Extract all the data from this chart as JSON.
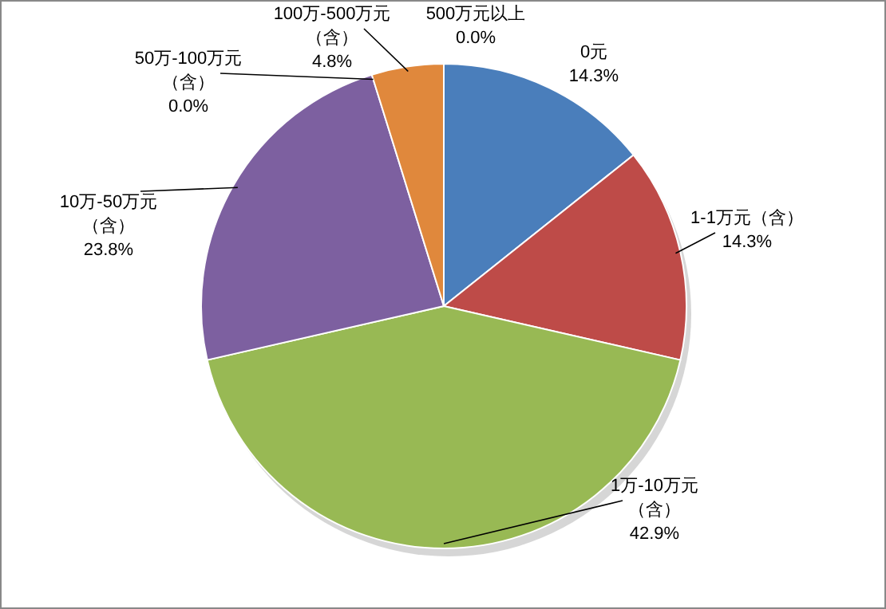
{
  "chart_data": {
    "type": "pie",
    "categories": [
      "0元",
      "1-1万元（含）",
      "1万-10万元（含）",
      "10万-50万元（含）",
      "50万-100万元（含）",
      "100万-500万元（含）",
      "500万元以上"
    ],
    "values": [
      14.3,
      14.3,
      42.9,
      23.8,
      0.0,
      4.8,
      0.0
    ],
    "colors": [
      "#4a7ebb",
      "#be4b48",
      "#98b954",
      "#7d60a0",
      null,
      "#e0883c",
      null
    ],
    "value_labels": [
      "14.3%",
      "14.3%",
      "42.9%",
      "23.8%",
      "0.0%",
      "4.8%",
      "0.0%"
    ]
  }
}
